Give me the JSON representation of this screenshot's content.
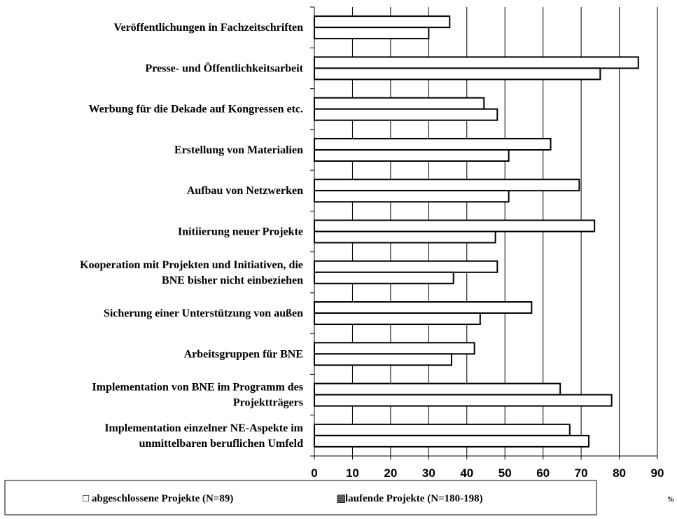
{
  "chart_data": {
    "type": "bar",
    "orientation": "horizontal",
    "categories": [
      [
        "Veröffentlichungen in Fachzeitschriften"
      ],
      [
        "Presse- und Öffentlichkeitsarbeit"
      ],
      [
        "Werbung für die Dekade auf Kongressen etc."
      ],
      [
        "Erstellung von Materialien"
      ],
      [
        "Aufbau von Netzwerken"
      ],
      [
        "Initiierung neuer Projekte"
      ],
      [
        "Kooperation mit Projekten und Initiativen, die",
        "BNE bisher nicht einbeziehen"
      ],
      [
        "Sicherung einer Unterstützung von außen"
      ],
      [
        "Arbeitsgruppen für BNE"
      ],
      [
        "Implementation von BNE im Programm des",
        "Projektträgers"
      ],
      [
        "Implementation einzelner NE-Aspekte im",
        "unmittelbaren beruflichen Umfeld"
      ]
    ],
    "series": [
      {
        "name": "abgeschlossene Projekte (N=89)",
        "color": "#ffffff",
        "values": [
          35.5,
          85,
          44.5,
          62,
          69.5,
          73.5,
          48,
          57,
          42,
          64.5,
          67
        ]
      },
      {
        "name": "laufende Projekte (N=180-198)",
        "color": "#ffffff",
        "values": [
          30,
          75,
          48,
          51,
          51,
          47.5,
          36.5,
          43.5,
          36,
          78,
          72
        ]
      }
    ],
    "xlim": [
      0,
      90
    ],
    "ticks": [
      0,
      10,
      20,
      30,
      40,
      50,
      60,
      70,
      80,
      90
    ],
    "unit": "%",
    "grid": "vertical major gridlines",
    "legend_position": "bottom",
    "legend_symbols": [
      "□",
      "▩"
    ]
  }
}
